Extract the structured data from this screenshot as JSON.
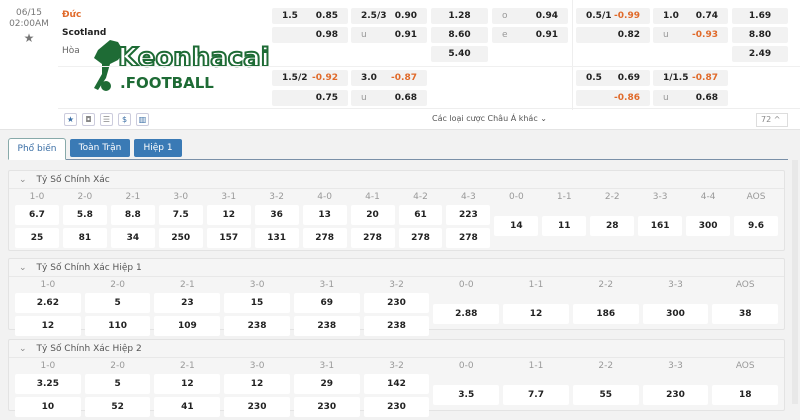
{
  "match": {
    "date": "06/15",
    "time": "02:00AM",
    "home": "Đức",
    "away": "Scotland",
    "draw": "Hòa",
    "logo_text": "Keonhacai .FOOTBALL",
    "odds": {
      "hdp_ft": [
        [
          "1.5",
          "0.85"
        ],
        [
          "",
          "0.98"
        ]
      ],
      "ou_ft": [
        [
          "2.5/3",
          "0.90"
        ],
        [
          "u",
          "0.91"
        ]
      ],
      "x12_ft": [
        "1.28",
        "8.60",
        "5.40"
      ],
      "oe": [
        [
          "o",
          "0.94"
        ],
        [
          "e",
          "0.91"
        ]
      ],
      "hdp_h1": [
        [
          "0.5/1",
          "-0.99"
        ],
        [
          "",
          "0.82"
        ]
      ],
      "ou_h1": [
        [
          "1.0",
          "0.74"
        ],
        [
          "u",
          "-0.93"
        ]
      ],
      "x12_h1": [
        "1.69",
        "8.80",
        "2.49"
      ],
      "hdp_ft2": [
        [
          "1.5/2",
          "-0.92"
        ],
        [
          "",
          "0.75"
        ]
      ],
      "ou_ft2": [
        [
          "3.0",
          "-0.87"
        ],
        [
          "u",
          "0.68"
        ]
      ],
      "hdp_h12": [
        [
          "0.5",
          "0.69"
        ],
        [
          "",
          "-0.86"
        ]
      ],
      "ou_h12": [
        [
          "1/1.5",
          "-0.87"
        ],
        [
          "u",
          "0.68"
        ]
      ]
    },
    "more_label": "Các loại cược Châu Á khác",
    "count": "72"
  },
  "tabs": [
    "Phổ biến",
    "Toàn Trận",
    "Hiệp 1"
  ],
  "sections": [
    {
      "title": "Tỷ Số Chính Xác",
      "pairs": [
        [
          "1-0",
          "6.7",
          "25"
        ],
        [
          "2-0",
          "5.8",
          "81"
        ],
        [
          "2-1",
          "8.8",
          "34"
        ],
        [
          "3-0",
          "7.5",
          "250"
        ],
        [
          "3-1",
          "12",
          "157"
        ],
        [
          "3-2",
          "36",
          "131"
        ],
        [
          "4-0",
          "13",
          "278"
        ],
        [
          "4-1",
          "20",
          "278"
        ],
        [
          "4-2",
          "61",
          "278"
        ],
        [
          "4-3",
          "223",
          "278"
        ]
      ],
      "singles": [
        [
          "0-0",
          "14"
        ],
        [
          "1-1",
          "11"
        ],
        [
          "2-2",
          "28"
        ],
        [
          "3-3",
          "161"
        ],
        [
          "4-4",
          "300"
        ],
        [
          "AOS",
          "9.6"
        ]
      ]
    },
    {
      "title": "Tỷ Số Chính Xác Hiệp 1",
      "pairs": [
        [
          "1-0",
          "2.62",
          "12"
        ],
        [
          "2-0",
          "5",
          "110"
        ],
        [
          "2-1",
          "23",
          "109"
        ],
        [
          "3-0",
          "15",
          "238"
        ],
        [
          "3-1",
          "69",
          "238"
        ],
        [
          "3-2",
          "230",
          "238"
        ]
      ],
      "singles": [
        [
          "0-0",
          "2.88"
        ],
        [
          "1-1",
          "12"
        ],
        [
          "2-2",
          "186"
        ],
        [
          "3-3",
          "300"
        ],
        [
          "AOS",
          "38"
        ]
      ]
    },
    {
      "title": "Tỷ Số Chính Xác Hiệp 2",
      "pairs": [
        [
          "1-0",
          "3.25",
          "10"
        ],
        [
          "2-0",
          "5",
          "52"
        ],
        [
          "2-1",
          "12",
          "41"
        ],
        [
          "3-0",
          "12",
          "230"
        ],
        [
          "3-1",
          "29",
          "230"
        ],
        [
          "3-2",
          "142",
          "230"
        ]
      ],
      "singles": [
        [
          "0-0",
          "3.5"
        ],
        [
          "1-1",
          "7.7"
        ],
        [
          "2-2",
          "55"
        ],
        [
          "3-3",
          "230"
        ],
        [
          "AOS",
          "18"
        ]
      ]
    }
  ],
  "colors": {
    "accent": "#3a7ab5",
    "negative": "#e06a2a",
    "home": "#e06a2a",
    "logo": "#1e6b35"
  }
}
